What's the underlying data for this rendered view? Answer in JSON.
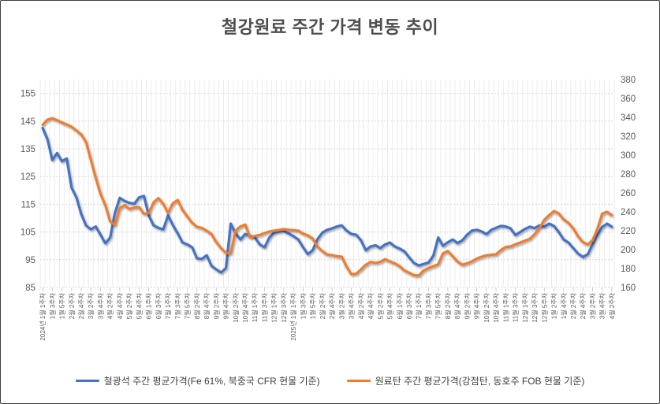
{
  "window": {
    "background": "#ffffff",
    "border_color": "#3f3f3f"
  },
  "chart_data": {
    "type": "line",
    "title": "철강원료 주간 가격 변동 추이",
    "grid": true,
    "legend_position": "bottom",
    "axis_label_color": "#595959",
    "gridline_color": "#D9D9D9",
    "stripe_color": "#ECECEC",
    "tick_color": "#BFBFBF",
    "left_axis": {
      "min": 85,
      "plot_max": 160,
      "ticks": [
        155,
        145,
        135,
        125,
        115,
        105,
        95,
        85
      ]
    },
    "right_axis": {
      "min": 160,
      "max": 380,
      "ticks": [
        380,
        360,
        340,
        320,
        300,
        280,
        260,
        240,
        220,
        200,
        180,
        160
      ]
    },
    "x_weeks_total": 119,
    "x_labels_every": 2,
    "x_labels": [
      "2024년 1월 1주차",
      "1월 3주차",
      "1월 5주차",
      "2월 2주차",
      "2월 4주차",
      "3월 2주차",
      "3월 4주차",
      "4월 2주차",
      "4월 4주차",
      "5월 2주차",
      "5월 4주차",
      "6월 1주차",
      "6월 3주차",
      "7월 1주차",
      "7월 3주차",
      "7월 5주차",
      "8월 2주차",
      "8월 4주차",
      "9월 2주차",
      "9월 4주차",
      "10월 2주차",
      "10월 4주차",
      "11월 1주차",
      "11월 3주차",
      "12월 1주차",
      "12월 3주차",
      "2025년 1월 1주차",
      "1월 3주차",
      "1월 5주차",
      "2월 2주차",
      "2월 4주차",
      "3월 2주차",
      "3월 4주차",
      "4월 2주차",
      "4월 4주차",
      "5월 2주차",
      "5월 4주차",
      "6월 1주차",
      "6월 3주차",
      "7월 1주차",
      "7월 3주차",
      "7월 5주차",
      "8월 2주차",
      "8월 4주차",
      "9월 2주차",
      "9월 4주차",
      "10월 2주차",
      "10월 4주차",
      "11월 1주차",
      "11월 3주차",
      "12월 1주차",
      "12월 3주차",
      "12월 5주차",
      "1월 2주차",
      "1월 4주차",
      "2월 2주차",
      "2월 4주차",
      "3월 2주차",
      "3월 4주차",
      "4월 2주차"
    ],
    "series": [
      {
        "name": "철광석 주간 평균가격(Fe 61%, 북중국 CFR 현물 기준)",
        "color": "#4472C4",
        "axis": "left",
        "values": [
          142.5,
          138.5,
          131,
          133.5,
          130.5,
          131.5,
          121,
          117.5,
          111.5,
          107.4,
          106,
          107,
          104,
          100.9,
          103,
          112,
          117.3,
          116.2,
          115.5,
          115.2,
          117.5,
          118,
          111,
          107.4,
          106.5,
          105.9,
          111,
          107.5,
          104.5,
          101.2,
          100.5,
          99.5,
          95.5,
          95.3,
          96.6,
          92.8,
          91.5,
          90.4,
          92,
          108,
          104.5,
          102.3,
          104.3,
          103.6,
          103.1,
          100.5,
          99.5,
          103,
          104.8,
          105.2,
          105.4,
          104.5,
          103.5,
          102.3,
          99.5,
          97,
          98.5,
          102.5,
          104.8,
          105.8,
          106.3,
          107,
          107.4,
          105.5,
          104.3,
          104,
          102,
          98.4,
          99.8,
          100.2,
          99.2,
          100.5,
          101.2,
          99.8,
          99,
          98,
          95.8,
          93.8,
          92.9,
          93.5,
          94,
          96.5,
          103,
          100,
          101.3,
          102.3,
          101,
          102,
          104,
          105.5,
          105.8,
          105.2,
          104.2,
          105.8,
          106.5,
          107.2,
          107,
          106.3,
          103.9,
          105,
          106.1,
          106.9,
          106.4,
          107.4,
          106.9,
          108,
          107.2,
          105,
          102.3,
          101.2,
          99.2,
          97.2,
          96,
          97,
          100.5,
          104,
          106.8,
          108,
          106.9
        ]
      },
      {
        "name": "원료탄 주간 평균가격(강점탄, 동호주 FOB 현물 기준)",
        "color": "#ED7D31",
        "axis": "right",
        "values": [
          332,
          337.5,
          339,
          337,
          334.5,
          332.5,
          330,
          326,
          322,
          314,
          295,
          276,
          259,
          247,
          230,
          226,
          244,
          247,
          243,
          244.5,
          245,
          238,
          238.5,
          250,
          254.5,
          248.5,
          239,
          249,
          252.5,
          242,
          235,
          228.3,
          224.2,
          223,
          220,
          216.5,
          208,
          201.5,
          196.7,
          196,
          220,
          224.5,
          226.5,
          213,
          214.5,
          215.5,
          217.5,
          219.2,
          220,
          220.8,
          221.7,
          221,
          220.5,
          220,
          217,
          215,
          211.7,
          203,
          198.3,
          194.8,
          194.2,
          193,
          192.5,
          182,
          174,
          174.5,
          179,
          184,
          187,
          186,
          187,
          190,
          187.5,
          185.5,
          182.5,
          178,
          175.5,
          173,
          172.5,
          178,
          180.5,
          182.5,
          184.5,
          196,
          198.5,
          193,
          187.5,
          184,
          185.5,
          187.5,
          190.5,
          192.5,
          194,
          194.6,
          195,
          199.5,
          202.8,
          203.3,
          205.5,
          207.5,
          209.5,
          211.3,
          216.5,
          223,
          231.5,
          236.5,
          240.8,
          238.3,
          232,
          228.3,
          222.5,
          214,
          208,
          205.5,
          210,
          222,
          238,
          240,
          236.5
        ]
      }
    ]
  }
}
